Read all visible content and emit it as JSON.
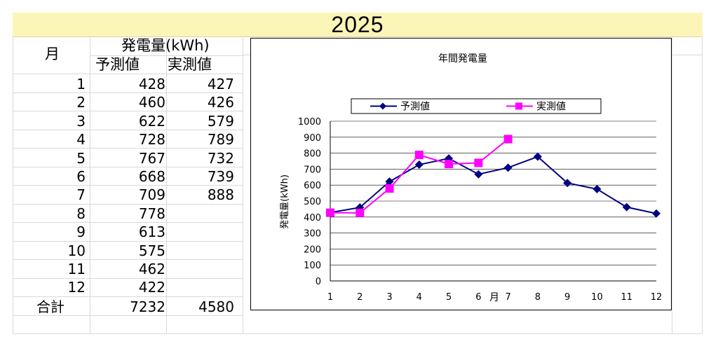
{
  "banner": {
    "year": "2025"
  },
  "table": {
    "col_month": "月",
    "col_group": "発電量(kWh)",
    "col_pred": "予測値",
    "col_actual": "実測値",
    "rows": [
      {
        "month": "1",
        "pred": "428",
        "actual": "427"
      },
      {
        "month": "2",
        "pred": "460",
        "actual": "426"
      },
      {
        "month": "3",
        "pred": "622",
        "actual": "579"
      },
      {
        "month": "4",
        "pred": "728",
        "actual": "789"
      },
      {
        "month": "5",
        "pred": "767",
        "actual": "732"
      },
      {
        "month": "6",
        "pred": "668",
        "actual": "739"
      },
      {
        "month": "7",
        "pred": "709",
        "actual": "888"
      },
      {
        "month": "8",
        "pred": "778",
        "actual": ""
      },
      {
        "month": "9",
        "pred": "613",
        "actual": ""
      },
      {
        "month": "10",
        "pred": "575",
        "actual": ""
      },
      {
        "month": "11",
        "pred": "462",
        "actual": ""
      },
      {
        "month": "12",
        "pred": "422",
        "actual": ""
      }
    ],
    "total_label": "合計",
    "total_pred": "7232",
    "total_actual": "4580"
  },
  "chart_data": {
    "type": "line",
    "title": "年間発電量",
    "xlabel": "月",
    "ylabel": "発電量(kWh)",
    "categories": [
      "1",
      "2",
      "3",
      "4",
      "5",
      "6",
      "7",
      "8",
      "9",
      "10",
      "11",
      "12"
    ],
    "ylim": [
      0,
      1000
    ],
    "yticks": [
      0,
      100,
      200,
      300,
      400,
      500,
      600,
      700,
      800,
      900,
      1000
    ],
    "grid": true,
    "legend": "top",
    "series": [
      {
        "name": "予測値",
        "color": "#000080",
        "marker": "diamond",
        "values": [
          428,
          460,
          622,
          728,
          767,
          668,
          709,
          778,
          613,
          575,
          462,
          422
        ]
      },
      {
        "name": "実測値",
        "color": "#ff00ff",
        "marker": "square",
        "values": [
          427,
          426,
          579,
          789,
          732,
          739,
          888,
          null,
          null,
          null,
          null,
          null
        ]
      }
    ]
  }
}
